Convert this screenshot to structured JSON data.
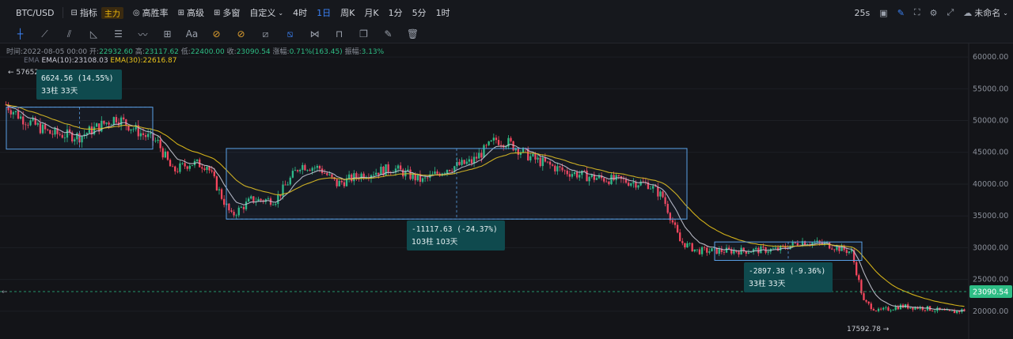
{
  "topbar": {
    "symbol": "BTC/USD",
    "indicators_label": "指标",
    "main_badge": "主力",
    "win_rate_label": "高胜率",
    "advanced_label": "高级",
    "multi_window_label": "多窗",
    "custom_label": "自定义",
    "intervals": [
      "4时",
      "1日",
      "周K",
      "月K",
      "1分",
      "5分",
      "1时"
    ],
    "active_interval": "1日",
    "countdown": "25s",
    "layout_name": "未命名"
  },
  "toolbar": {
    "tools": [
      "crosshair-tool",
      "trendline-tool",
      "fib-tool",
      "angle-tool",
      "channel-tool",
      "wave-tool",
      "measure-tool",
      "text-tool",
      "magnet-tool",
      "lock-tool",
      "ruler-tool",
      "range-tool",
      "pattern-tool",
      "delete-tool",
      "copy-tool",
      "edit-tool",
      "trash-tool"
    ],
    "text_tool_label": "Aa"
  },
  "info": {
    "time_label": "时间:",
    "time": "2022-08-05 00:00",
    "open_label": "开:",
    "open": "22932.60",
    "high_label": "高:",
    "high": "23117.62",
    "low_label": "低:",
    "low": "22400.00",
    "close_label": "收:",
    "close": "23090.54",
    "change_label": "涨幅:",
    "change": "0.71%(163.45)",
    "amplitude_label": "振幅:",
    "amplitude": "3.13%"
  },
  "ema": {
    "label": "EMA",
    "ema10": "EMA(10):23108.03",
    "ema30": "EMA(30):22616.87",
    "ema10_color": "#c8c8d4",
    "ema30_color": "#e8c21a"
  },
  "chart_data": {
    "type": "candlestick",
    "y_axis_ticks": [
      "60000.00",
      "55000.00",
      "50000.00",
      "45000.00",
      "40000.00",
      "35000.00",
      "30000.00",
      "25000.00",
      "20000.00"
    ],
    "ylim": [
      17000,
      61500
    ],
    "last_price": "23090.54",
    "last_price_value": 23090.54,
    "high_marker": "57652",
    "low_marker": "17592.78",
    "up_color": "#2ebd85",
    "down_color": "#f6465d",
    "measurements": [
      {
        "change": "6624.56 (14.55%)",
        "bars": "33柱 33天",
        "from": 45500,
        "to": 52100
      },
      {
        "change": "-11117.63 (-24.37%)",
        "bars": "103柱 103天",
        "from": 45600,
        "to": 34500
      },
      {
        "change": "-2897.38 (-9.36%)",
        "bars": "33柱 33天",
        "from": 30900,
        "to": 28000
      }
    ],
    "ema_series": [
      {
        "name": "EMA(10)",
        "value": 23108.03
      },
      {
        "name": "EMA(30)",
        "value": 22616.87
      }
    ]
  }
}
